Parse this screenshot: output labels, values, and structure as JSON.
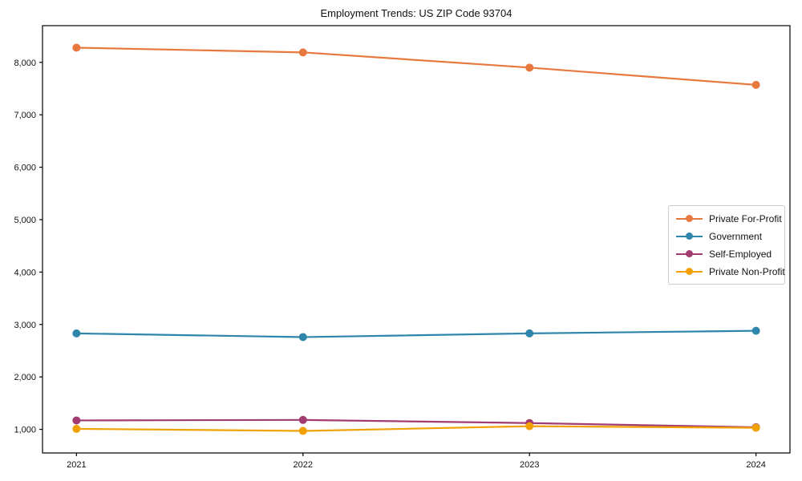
{
  "page": {
    "background": "#ffffff",
    "text_color": "#111111",
    "axis_color": "#000000"
  },
  "chart_data": {
    "type": "line",
    "title": "Employment Trends: US ZIP Code 93704",
    "categories": [
      "2021",
      "2022",
      "2023",
      "2024"
    ],
    "series": [
      {
        "name": "Private For-Profit",
        "color": "#E8793E",
        "values": [
          8280,
          8190,
          7900,
          7570
        ]
      },
      {
        "name": "Government",
        "color": "#2E86AB",
        "values": [
          2830,
          2760,
          2830,
          2880
        ]
      },
      {
        "name": "Self-Employed",
        "color": "#A23B72",
        "values": [
          1170,
          1180,
          1120,
          1040
        ]
      },
      {
        "name": "Private Non-Profit",
        "color": "#F2A104",
        "values": [
          1010,
          970,
          1060,
          1030
        ]
      }
    ],
    "xlabel": "",
    "ylabel": "",
    "ylim": [
      550,
      8700
    ],
    "yticks": [
      1000,
      2000,
      3000,
      4000,
      5000,
      6000,
      7000,
      8000
    ],
    "ytick_format": "comma",
    "grid": false,
    "frame": "box",
    "marker": "circle",
    "legend_position": "center-right"
  }
}
